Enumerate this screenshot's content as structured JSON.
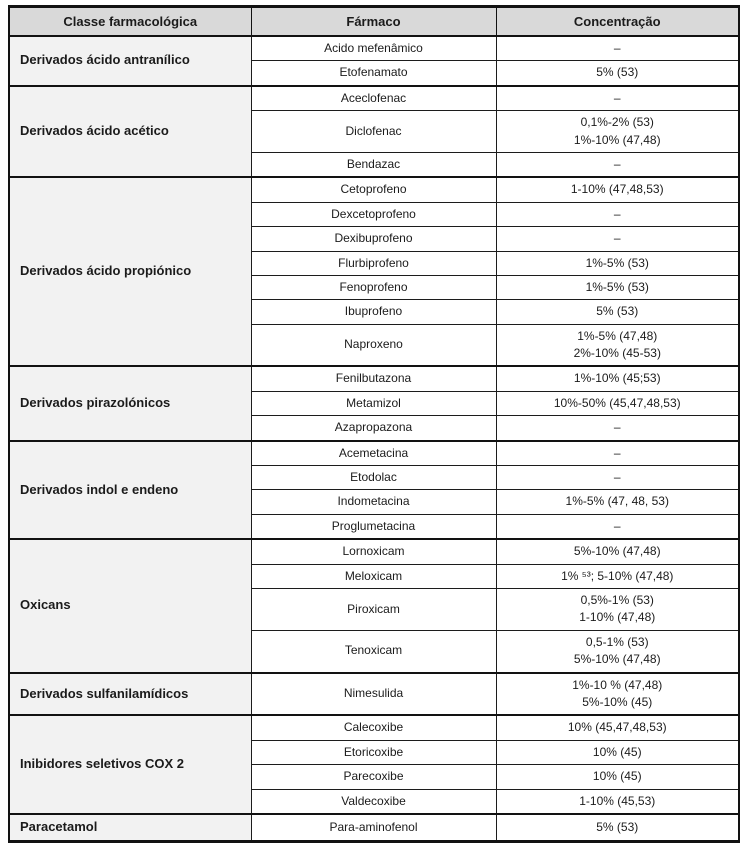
{
  "table": {
    "headers": [
      "Classe farmacológica",
      "Fármaco",
      "Concentração"
    ],
    "groups": [
      {
        "class": "Derivados ácido antranílico",
        "drugs": [
          {
            "name": "Acido mefenâmico",
            "concentration": [
              "–"
            ]
          },
          {
            "name": "Etofenamato",
            "concentration": [
              "5% (53)"
            ]
          }
        ]
      },
      {
        "class": "Derivados ácido acético",
        "drugs": [
          {
            "name": "Aceclofenac",
            "concentration": [
              "–"
            ]
          },
          {
            "name": "Diclofenac",
            "concentration": [
              "0,1%-2% (53)",
              "1%-10% (47,48)"
            ]
          },
          {
            "name": "Bendazac",
            "concentration": [
              "–"
            ]
          }
        ]
      },
      {
        "class": "Derivados ácido propiónico",
        "drugs": [
          {
            "name": "Cetoprofeno",
            "concentration": [
              "1-10% (47,48,53)"
            ]
          },
          {
            "name": "Dexcetoprofeno",
            "concentration": [
              "–"
            ]
          },
          {
            "name": "Dexibuprofeno",
            "concentration": [
              "–"
            ]
          },
          {
            "name": "Flurbiprofeno",
            "concentration": [
              "1%-5% (53)"
            ]
          },
          {
            "name": "Fenoprofeno",
            "concentration": [
              "1%-5% (53)"
            ]
          },
          {
            "name": "Ibuprofeno",
            "concentration": [
              "5% (53)"
            ]
          },
          {
            "name": "Naproxeno",
            "concentration": [
              "1%-5% (47,48)",
              "2%-10% (45-53)"
            ]
          }
        ]
      },
      {
        "class": "Derivados pirazolónicos",
        "drugs": [
          {
            "name": "Fenilbutazona",
            "concentration": [
              "1%-10% (45;53)"
            ]
          },
          {
            "name": "Metamizol",
            "concentration": [
              "10%-50% (45,47,48,53)"
            ]
          },
          {
            "name": "Azapropazona",
            "concentration": [
              "–"
            ]
          }
        ]
      },
      {
        "class": "Derivados indol e endeno",
        "drugs": [
          {
            "name": "Acemetacina",
            "concentration": [
              "–"
            ]
          },
          {
            "name": "Etodolac",
            "concentration": [
              "–"
            ]
          },
          {
            "name": "Indometacina",
            "concentration": [
              "1%-5% (47, 48, 53)"
            ]
          },
          {
            "name": "Proglumetacina",
            "concentration": [
              "–"
            ]
          }
        ]
      },
      {
        "class": "Oxicans",
        "drugs": [
          {
            "name": "Lornoxicam",
            "concentration": [
              "5%-10% (47,48)"
            ]
          },
          {
            "name": "Meloxicam",
            "concentration": [
              "1% ⁵³; 5-10% (47,48)"
            ]
          },
          {
            "name": "Piroxicam",
            "concentration": [
              "0,5%-1% (53)",
              "1-10% (47,48)"
            ]
          },
          {
            "name": "Tenoxicam",
            "concentration": [
              "0,5-1% (53)",
              "5%-10% (47,48)"
            ]
          }
        ]
      },
      {
        "class": "Derivados sulfanilamídicos",
        "drugs": [
          {
            "name": "Nimesulida",
            "concentration": [
              "1%-10 % (47,48)",
              "5%-10% (45)"
            ]
          }
        ]
      },
      {
        "class": "Inibidores seletivos COX 2",
        "drugs": [
          {
            "name": "Calecoxibe",
            "concentration": [
              "10% (45,47,48,53)"
            ]
          },
          {
            "name": "Etoricoxibe",
            "concentration": [
              "10% (45)"
            ]
          },
          {
            "name": "Parecoxibe",
            "concentration": [
              "10% (45)"
            ]
          },
          {
            "name": "Valdecoxibe",
            "concentration": [
              "1-10% (45,53)"
            ]
          }
        ]
      },
      {
        "class": "Paracetamol",
        "drugs": [
          {
            "name": "Para-aminofenol",
            "concentration": [
              "5% (53)"
            ]
          }
        ]
      }
    ],
    "colors": {
      "header_bg": "#d9d9d9",
      "class_col_bg": "#f2f2f2",
      "border": "#121212",
      "text": "#1b1b1b"
    }
  }
}
